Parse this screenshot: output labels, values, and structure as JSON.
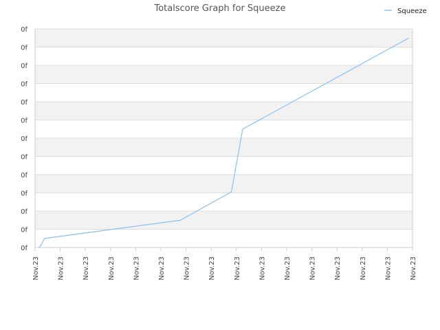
{
  "chart_data": {
    "type": "line",
    "title": "Totalscore Graph for Squeeze",
    "xlabel": "",
    "ylabel": "",
    "legend_position": "top-right",
    "grid": true,
    "colors": {
      "series_line": "#90c4ee",
      "band_shaded": "#f2f2f2",
      "band_plain": "#ffffff",
      "gridline": "#dddddd",
      "axis": "#cccccc"
    },
    "x_tick_labels": [
      "Nov.23",
      "Nov.23",
      "Nov.23",
      "Nov.23",
      "Nov.23",
      "Nov.23",
      "Nov.23",
      "Nov.23",
      "Nov.23",
      "Nov.23",
      "Nov.23",
      "Nov.23",
      "Nov.23",
      "Nov.23",
      "Nov.23",
      "Nov.23"
    ],
    "y_tick_labels": [
      "0f",
      "0f",
      "0f",
      "0f",
      "0f",
      "0f",
      "0f",
      "0f",
      "0f",
      "0f",
      "0f",
      "0f",
      "0f"
    ],
    "xlim": [
      0,
      100
    ],
    "ylim": [
      0,
      12
    ],
    "series": [
      {
        "name": "Squeeze",
        "x": [
          1.0,
          1.5,
          2.5,
          38.5,
          52.0,
          55.0,
          99.0
        ],
        "y": [
          0.0,
          0.1,
          0.5,
          1.5,
          3.05,
          6.5,
          11.5
        ]
      }
    ]
  }
}
